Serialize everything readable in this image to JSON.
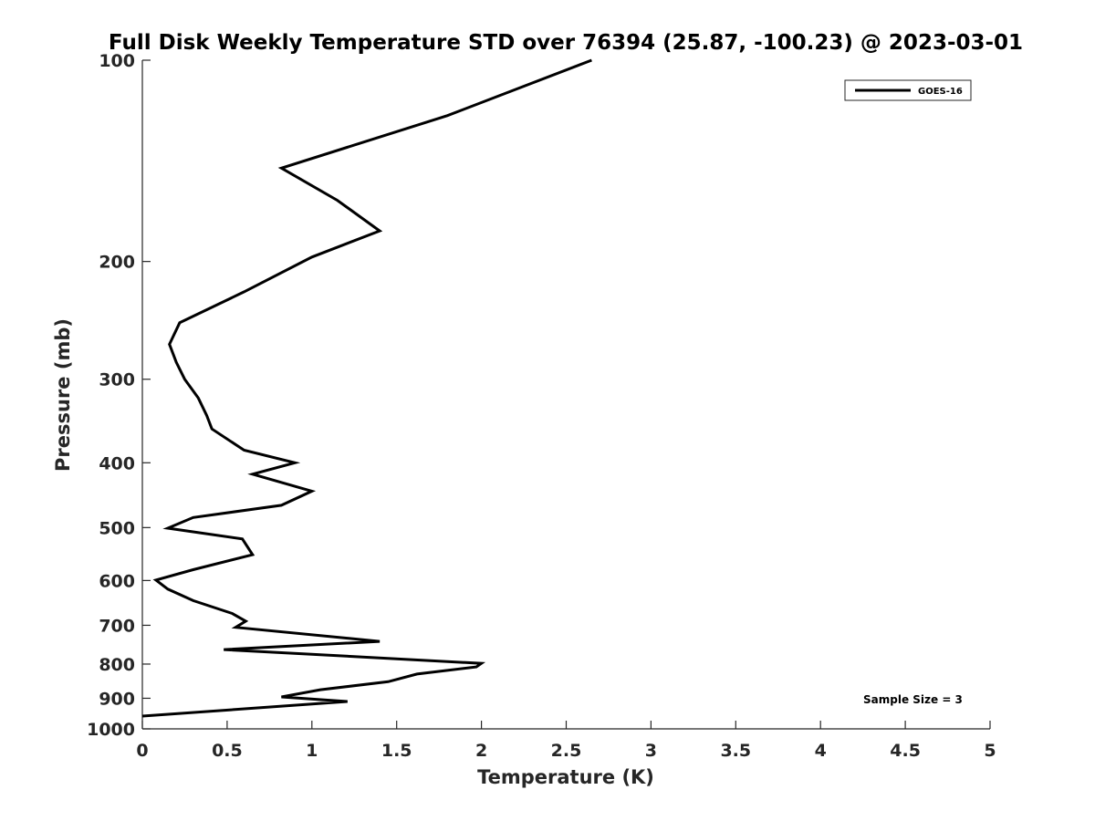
{
  "chart_data": {
    "type": "line",
    "title": "Full Disk Weekly Temperature STD over 76394 (25.87, -100.23) @ 2023-03-01",
    "xlabel": "Temperature (K)",
    "ylabel": "Pressure (mb)",
    "xlim": [
      0,
      5
    ],
    "ylim": [
      100,
      1000
    ],
    "y_scale": "log",
    "y_reversed": true,
    "xticks": [
      0,
      0.5,
      1,
      1.5,
      2,
      2.5,
      3,
      3.5,
      4,
      4.5,
      5
    ],
    "xtick_labels": [
      "0",
      "0.5",
      "1",
      "1.5",
      "2",
      "2.5",
      "3",
      "3.5",
      "4",
      "4.5",
      "5"
    ],
    "yticks": [
      100,
      200,
      300,
      400,
      500,
      600,
      700,
      800,
      900,
      1000
    ],
    "ytick_labels": [
      "100",
      "200",
      "300",
      "400",
      "500",
      "600",
      "700",
      "800",
      "900",
      "1000"
    ],
    "grid": false,
    "legend_position": "top-right",
    "series": [
      {
        "name": "GOES-16",
        "color": "#000000",
        "x": [
          2.65,
          1.8,
          0.82,
          1.15,
          1.4,
          1.0,
          0.6,
          0.22,
          0.16,
          0.2,
          0.25,
          0.33,
          0.38,
          0.41,
          0.6,
          0.9,
          0.65,
          1.0,
          0.82,
          0.3,
          0.15,
          0.59,
          0.65,
          0.3,
          0.08,
          0.15,
          0.3,
          0.53,
          0.61,
          0.55,
          1.4,
          0.48,
          2.0,
          1.97,
          1.62,
          1.45,
          1.05,
          0.82,
          1.21,
          0.0
        ],
        "y": [
          100,
          121,
          145,
          162,
          180,
          197,
          222,
          247,
          266,
          283,
          300,
          320,
          340,
          356,
          383,
          400,
          416,
          441,
          463,
          483,
          501,
          520,
          549,
          578,
          599,
          618,
          643,
          672,
          690,
          705,
          740,
          761,
          798,
          808,
          828,
          850,
          874,
          896,
          910,
          957
        ]
      }
    ]
  },
  "annotation": "Sample Size = 3"
}
